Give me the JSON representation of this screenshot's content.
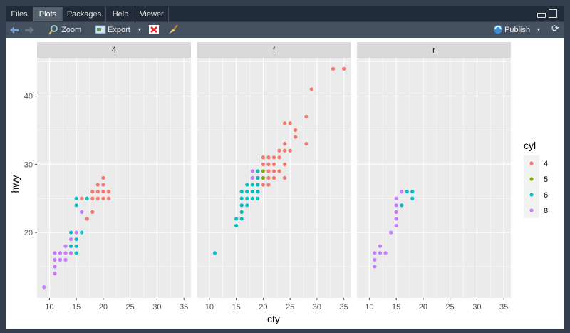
{
  "tabs": [
    "Files",
    "Plots",
    "Packages",
    "Help",
    "Viewer"
  ],
  "toolbar": {
    "zoom": "Zoom",
    "export": "Export",
    "publish": "Publish"
  },
  "plot": {
    "x_label": "cty",
    "y_label": "hwy",
    "legend_title": "cyl"
  },
  "chart_data": [
    {
      "type": "scatter",
      "title": "4",
      "xlim": [
        7.7,
        36.3
      ],
      "ylim": [
        10.4,
        45.6
      ],
      "xticks": [
        10,
        15,
        20,
        25,
        30,
        35
      ],
      "yticks": [
        20,
        30,
        40
      ],
      "grid": true,
      "series": [
        {
          "name": "4",
          "color": "#F8766D",
          "x": [
            20,
            19,
            20,
            18,
            19,
            20,
            21,
            16,
            18,
            19,
            20,
            21,
            17,
            18
          ],
          "values": [
            28,
            27,
            27,
            26,
            26,
            26,
            26,
            25,
            25,
            25,
            25,
            25,
            22,
            23
          ]
        },
        {
          "name": "6",
          "color": "#00BFC4",
          "x": [
            15,
            15,
            17,
            16,
            14,
            15,
            14,
            15,
            14,
            15
          ],
          "values": [
            25,
            24,
            25,
            20,
            20,
            19,
            18,
            18,
            17,
            17
          ]
        },
        {
          "name": "8",
          "color": "#C77CFF",
          "x": [
            9,
            11,
            11,
            11,
            11,
            12,
            12,
            13,
            13,
            13,
            14,
            14,
            16,
            15
          ],
          "values": [
            12,
            17,
            16,
            15,
            14,
            17,
            16,
            17,
            16,
            18,
            19,
            17,
            23,
            20
          ]
        }
      ]
    },
    {
      "type": "scatter",
      "title": "f",
      "xlim": [
        7.7,
        36.3
      ],
      "ylim": [
        10.4,
        45.6
      ],
      "xticks": [
        10,
        15,
        20,
        25,
        30,
        35
      ],
      "yticks": [
        20,
        30,
        40
      ],
      "grid": true,
      "series": [
        {
          "name": "4",
          "color": "#F8766D",
          "x": [
            33,
            35,
            29,
            28,
            24,
            25,
            26,
            26,
            24,
            28,
            23,
            24,
            25,
            20,
            21,
            22,
            23,
            20,
            21,
            22,
            24,
            18,
            21,
            22,
            23,
            19,
            21,
            22,
            24,
            20,
            21,
            19
          ],
          "values": [
            44,
            44,
            41,
            37,
            36,
            36,
            35,
            34,
            33,
            33,
            32,
            32,
            32,
            31,
            31,
            31,
            31,
            30,
            30,
            30,
            30,
            29,
            29,
            29,
            29,
            28,
            28,
            28,
            28,
            27,
            27,
            26
          ]
        },
        {
          "name": "5",
          "color": "#7CAE00",
          "x": [
            20,
            20
          ],
          "values": [
            29,
            28
          ]
        },
        {
          "name": "6",
          "color": "#00BFC4",
          "x": [
            11,
            15,
            15,
            16,
            16,
            16,
            16,
            17,
            18,
            17,
            18,
            19,
            18,
            19,
            19,
            17,
            18,
            19,
            19,
            17,
            16
          ],
          "values": [
            17,
            21,
            22,
            23,
            24,
            25,
            26,
            26,
            26,
            27,
            27,
            27,
            28,
            28,
            29,
            25,
            25,
            25,
            26,
            24,
            22
          ]
        },
        {
          "name": "8",
          "color": "#C77CFF",
          "x": [
            18,
            18
          ],
          "values": [
            29,
            28
          ]
        }
      ]
    },
    {
      "type": "scatter",
      "title": "r",
      "xlim": [
        7.7,
        36.3
      ],
      "ylim": [
        10.4,
        45.6
      ],
      "xticks": [
        10,
        15,
        20,
        25,
        30,
        35
      ],
      "yticks": [
        20,
        30,
        40
      ],
      "grid": true,
      "series": [
        {
          "name": "6",
          "color": "#00BFC4",
          "x": [
            16,
            17,
            18,
            18
          ],
          "values": [
            24,
            26,
            26,
            25
          ]
        },
        {
          "name": "8",
          "color": "#C77CFF",
          "x": [
            11,
            11,
            11,
            12,
            12,
            13,
            14,
            15,
            15,
            15,
            15,
            15,
            16
          ],
          "values": [
            15,
            16,
            17,
            17,
            18,
            17,
            20,
            21,
            22,
            23,
            24,
            25,
            26
          ]
        }
      ]
    }
  ]
}
